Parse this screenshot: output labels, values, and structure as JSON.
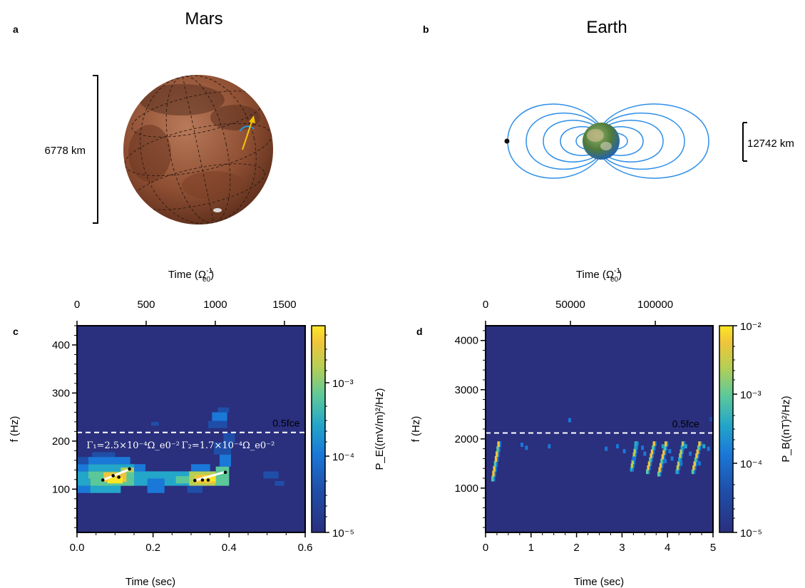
{
  "panels": {
    "a": {
      "letter": "a",
      "title": "Mars",
      "scale_label": "6778 km",
      "colors": {
        "planet": "#8f4f33",
        "arrow": "#f5c400",
        "arc": "#1e9be0"
      }
    },
    "b": {
      "letter": "b",
      "title": "Earth",
      "scale_label": "12742 km",
      "colors": {
        "field_lines": "#2f8fe8",
        "ocean": "#1f5fbf",
        "land": "#6a8a3a"
      }
    }
  },
  "colorbar_colors": [
    "#440154",
    "#3b2f80",
    "#1f4ea8",
    "#1a78d8",
    "#23a6c9",
    "#5cc89a",
    "#b6cf54",
    "#f0c53a",
    "#fde725"
  ],
  "chart_data": [
    {
      "id": "c",
      "letter": "c",
      "type": "heatmap",
      "xlabel": "Time (sec)",
      "x_ticks": [
        "0.0",
        "0.2",
        "0.4",
        "0.6"
      ],
      "xlim": [
        0,
        0.6
      ],
      "top_xlabel": "Time (Ω_e0^-1)",
      "top_x_ticks": [
        "0",
        "500",
        "1000",
        "1500"
      ],
      "top_xlim": [
        0,
        1650
      ],
      "ylabel": "f (Hz)",
      "y_ticks": [
        "100",
        "200",
        "300",
        "400"
      ],
      "ylim": [
        10,
        440
      ],
      "background": "#2a2f7e",
      "cbar_label": "P_E((mV/m)²/Hz)",
      "cbar_ticks": [
        "10⁻³",
        "10⁻⁴",
        "10⁻⁵"
      ],
      "cbar_range": "1e-5 to 5e-3",
      "hline": {
        "y": 218,
        "label": "0.5fce"
      },
      "annotations": [
        {
          "text": "Γ₁=2.5×10⁻⁴Ω_e0⁻²",
          "x": 0.025,
          "y": 185
        },
        {
          "text": "Γ₂=1.7×10⁻⁴Ω_e0⁻²",
          "x": 0.275,
          "y": 185
        }
      ],
      "fit_lines": [
        {
          "x": [
            0.065,
            0.14
          ],
          "y": [
            118,
            142
          ]
        },
        {
          "x": [
            0.31,
            0.39
          ],
          "y": [
            118,
            136
          ]
        }
      ],
      "fit_points": [
        {
          "x": 0.068,
          "y": 119
        },
        {
          "x": 0.095,
          "y": 128
        },
        {
          "x": 0.11,
          "y": 125
        },
        {
          "x": 0.138,
          "y": 142
        },
        {
          "x": 0.31,
          "y": 118
        },
        {
          "x": 0.33,
          "y": 119
        },
        {
          "x": 0.345,
          "y": 119
        },
        {
          "x": 0.39,
          "y": 135
        }
      ],
      "cells": [
        {
          "x": 0.0,
          "y": 92,
          "w": 0.04,
          "h": 15,
          "level": 2
        },
        {
          "x": 0.0,
          "y": 107,
          "w": 0.035,
          "h": 15,
          "level": 3
        },
        {
          "x": 0.0,
          "y": 122,
          "w": 0.03,
          "h": 15,
          "level": 3
        },
        {
          "x": 0.0,
          "y": 137,
          "w": 0.03,
          "h": 15,
          "level": 2
        },
        {
          "x": 0.0,
          "y": 152,
          "w": 0.03,
          "h": 15,
          "level": 1
        },
        {
          "x": 0.035,
          "y": 92,
          "w": 0.08,
          "h": 15,
          "level": 3
        },
        {
          "x": 0.035,
          "y": 107,
          "w": 0.12,
          "h": 15,
          "level": 4
        },
        {
          "x": 0.03,
          "y": 122,
          "w": 0.13,
          "h": 15,
          "level": 4
        },
        {
          "x": 0.03,
          "y": 137,
          "w": 0.12,
          "h": 15,
          "level": 3
        },
        {
          "x": 0.03,
          "y": 152,
          "w": 0.11,
          "h": 15,
          "level": 2
        },
        {
          "x": 0.04,
          "y": 167,
          "w": 0.06,
          "h": 10,
          "level": 1
        },
        {
          "x": 0.07,
          "y": 115,
          "w": 0.06,
          "h": 20,
          "level": 6
        },
        {
          "x": 0.08,
          "y": 112,
          "w": 0.04,
          "h": 12,
          "level": 7
        },
        {
          "x": 0.115,
          "y": 135,
          "w": 0.035,
          "h": 10,
          "level": 5
        },
        {
          "x": 0.15,
          "y": 107,
          "w": 0.04,
          "h": 30,
          "level": 3
        },
        {
          "x": 0.15,
          "y": 137,
          "w": 0.03,
          "h": 15,
          "level": 2
        },
        {
          "x": 0.185,
          "y": 92,
          "w": 0.045,
          "h": 30,
          "level": 2
        },
        {
          "x": 0.185,
          "y": 122,
          "w": 0.05,
          "h": 15,
          "level": 3
        },
        {
          "x": 0.23,
          "y": 107,
          "w": 0.1,
          "h": 30,
          "level": 3
        },
        {
          "x": 0.26,
          "y": 112,
          "w": 0.05,
          "h": 15,
          "level": 4
        },
        {
          "x": 0.295,
          "y": 107,
          "w": 0.07,
          "h": 30,
          "level": 5
        },
        {
          "x": 0.31,
          "y": 112,
          "w": 0.06,
          "h": 18,
          "level": 6
        },
        {
          "x": 0.33,
          "y": 116,
          "w": 0.035,
          "h": 12,
          "level": 7
        },
        {
          "x": 0.365,
          "y": 107,
          "w": 0.035,
          "h": 40,
          "level": 4
        },
        {
          "x": 0.375,
          "y": 147,
          "w": 0.03,
          "h": 25,
          "level": 2
        },
        {
          "x": 0.3,
          "y": 137,
          "w": 0.05,
          "h": 15,
          "level": 2
        },
        {
          "x": 0.36,
          "y": 172,
          "w": 0.045,
          "h": 25,
          "level": 1
        },
        {
          "x": 0.345,
          "y": 227,
          "w": 0.05,
          "h": 15,
          "level": 1
        },
        {
          "x": 0.355,
          "y": 242,
          "w": 0.04,
          "h": 18,
          "level": 2
        },
        {
          "x": 0.37,
          "y": 260,
          "w": 0.03,
          "h": 10,
          "level": 1
        },
        {
          "x": 0.195,
          "y": 232,
          "w": 0.02,
          "h": 8,
          "level": 1
        },
        {
          "x": 0.385,
          "y": 197,
          "w": 0.03,
          "h": 20,
          "level": 1
        },
        {
          "x": 0.49,
          "y": 122,
          "w": 0.04,
          "h": 15,
          "level": 1
        },
        {
          "x": 0.52,
          "y": 107,
          "w": 0.025,
          "h": 10,
          "level": 1
        },
        {
          "x": 0.29,
          "y": 92,
          "w": 0.04,
          "h": 15,
          "level": 1
        }
      ]
    },
    {
      "id": "d",
      "letter": "d",
      "type": "heatmap",
      "xlabel": "Time (sec)",
      "x_ticks": [
        "0",
        "1",
        "2",
        "3",
        "4",
        "5"
      ],
      "xlim": [
        0,
        5
      ],
      "top_xlabel": "Time (Ω_e0^-1)",
      "top_x_ticks": [
        "0",
        "50000",
        "100000"
      ],
      "top_xlim": [
        0,
        134000
      ],
      "ylabel": "f (Hz)",
      "y_ticks": [
        "1000",
        "2000",
        "3000",
        "4000"
      ],
      "ylim": [
        100,
        4300
      ],
      "background": "#2a2f7e",
      "cbar_label": "P_B((nT)²/Hz)",
      "cbar_ticks": [
        "10⁻²",
        "10⁻³",
        "10⁻⁴",
        "10⁻⁵"
      ],
      "cbar_range": "1e-5 to 1e-2",
      "hline": {
        "y": 2120,
        "label": "0.5fce"
      },
      "streaks": [
        {
          "x0": 0.15,
          "x1": 0.3,
          "f0": 1150,
          "f1": 1950,
          "level": 6
        },
        {
          "x0": 3.2,
          "x1": 3.32,
          "f0": 1350,
          "f1": 1950,
          "level": 5
        },
        {
          "x0": 3.55,
          "x1": 3.72,
          "f0": 1300,
          "f1": 1950,
          "level": 6
        },
        {
          "x0": 3.8,
          "x1": 3.98,
          "f0": 1250,
          "f1": 1950,
          "level": 6
        },
        {
          "x0": 4.2,
          "x1": 4.35,
          "f0": 1300,
          "f1": 1950,
          "level": 5
        },
        {
          "x0": 4.55,
          "x1": 4.72,
          "f0": 1300,
          "f1": 1950,
          "level": 6
        }
      ],
      "speckles": [
        {
          "x": 0.8,
          "y": 1880,
          "level": 2
        },
        {
          "x": 0.9,
          "y": 1820,
          "level": 2
        },
        {
          "x": 1.4,
          "y": 1850,
          "level": 2
        },
        {
          "x": 1.85,
          "y": 2380,
          "level": 2
        },
        {
          "x": 2.65,
          "y": 1800,
          "level": 2
        },
        {
          "x": 2.9,
          "y": 1850,
          "level": 2
        },
        {
          "x": 3.05,
          "y": 1750,
          "level": 2
        },
        {
          "x": 3.3,
          "y": 1900,
          "level": 3
        },
        {
          "x": 3.45,
          "y": 1820,
          "level": 2
        },
        {
          "x": 3.5,
          "y": 1700,
          "level": 2
        },
        {
          "x": 3.9,
          "y": 1850,
          "level": 3
        },
        {
          "x": 4.05,
          "y": 1750,
          "level": 2
        },
        {
          "x": 4.1,
          "y": 1600,
          "level": 2
        },
        {
          "x": 4.4,
          "y": 1850,
          "level": 3
        },
        {
          "x": 4.5,
          "y": 1700,
          "level": 2
        },
        {
          "x": 4.8,
          "y": 1850,
          "level": 3
        },
        {
          "x": 4.9,
          "y": 1800,
          "level": 2
        },
        {
          "x": 4.95,
          "y": 2400,
          "level": 1
        },
        {
          "x": 4.7,
          "y": 1500,
          "level": 2
        },
        {
          "x": 3.25,
          "y": 1600,
          "level": 2
        },
        {
          "x": 3.95,
          "y": 1550,
          "level": 2
        },
        {
          "x": 4.3,
          "y": 1500,
          "level": 2
        }
      ]
    }
  ]
}
